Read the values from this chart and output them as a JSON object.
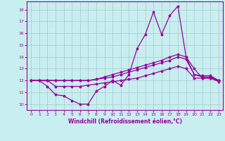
{
  "xlabel": "Windchill (Refroidissement éolien,°C)",
  "bg_color": "#c8eef0",
  "line_color": "#990099",
  "xlim": [
    -0.5,
    23.5
  ],
  "ylim": [
    9.5,
    18.7
  ],
  "yticks": [
    10,
    11,
    12,
    13,
    14,
    15,
    16,
    17,
    18
  ],
  "xticks": [
    0,
    1,
    2,
    3,
    4,
    5,
    6,
    7,
    8,
    9,
    10,
    11,
    12,
    13,
    14,
    15,
    16,
    17,
    18,
    19,
    20,
    21,
    22,
    23
  ],
  "line1_y": [
    12.0,
    12.0,
    11.5,
    10.8,
    10.7,
    10.3,
    10.0,
    10.0,
    11.1,
    11.5,
    12.0,
    11.6,
    12.5,
    14.7,
    15.9,
    17.8,
    15.9,
    17.5,
    18.3,
    14.0,
    13.0,
    12.2,
    12.2,
    11.9
  ],
  "line2_y": [
    12.0,
    12.0,
    12.0,
    11.5,
    11.5,
    11.5,
    11.5,
    11.6,
    11.7,
    11.8,
    11.9,
    12.0,
    12.1,
    12.2,
    12.4,
    12.6,
    12.8,
    13.0,
    13.2,
    13.0,
    12.2,
    12.2,
    12.2,
    12.0
  ],
  "line3_y": [
    12.0,
    12.0,
    12.0,
    12.0,
    12.0,
    12.0,
    12.0,
    12.0,
    12.1,
    12.2,
    12.3,
    12.5,
    12.7,
    12.9,
    13.1,
    13.3,
    13.5,
    13.7,
    14.0,
    13.8,
    12.5,
    12.3,
    12.3,
    12.0
  ],
  "line4_y": [
    12.0,
    12.0,
    12.0,
    12.0,
    12.0,
    12.0,
    12.0,
    12.0,
    12.1,
    12.3,
    12.5,
    12.7,
    12.9,
    13.1,
    13.3,
    13.5,
    13.7,
    14.0,
    14.2,
    14.0,
    12.5,
    12.4,
    12.4,
    12.0
  ]
}
